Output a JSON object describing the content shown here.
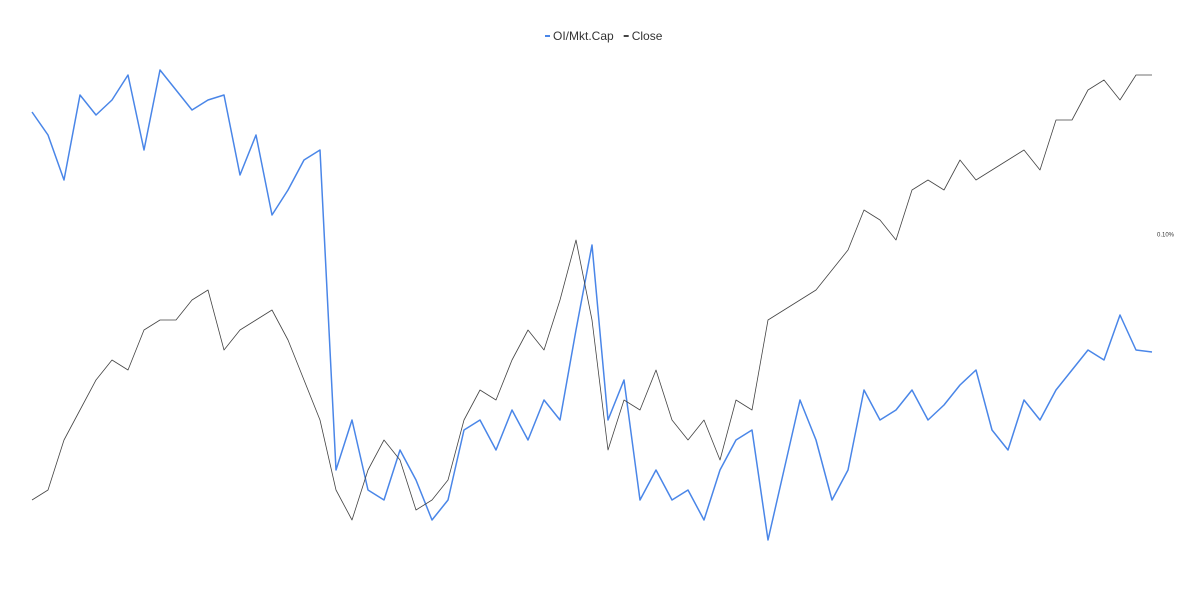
{
  "chart_data": {
    "type": "line",
    "categories": [
      null,
      null,
      null,
      null,
      null,
      null,
      null,
      null,
      null,
      null,
      null,
      null,
      null,
      null,
      null,
      null,
      null,
      null,
      null,
      null,
      null,
      null,
      null,
      null,
      null,
      null,
      null,
      null,
      null,
      null,
      null,
      null,
      null,
      null,
      null,
      null,
      null,
      null,
      null,
      null,
      null,
      null,
      null,
      null,
      null,
      null,
      null,
      null,
      null,
      null,
      null,
      null,
      null,
      null,
      null,
      null,
      null,
      null,
      null,
      null,
      null,
      null,
      null,
      null,
      null,
      null,
      null,
      null,
      null,
      null,
      null
    ],
    "series": [
      {
        "name": "OI/Mkt.Cap",
        "color": "#4a86e8",
        "axis": "y2",
        "values": [
          0.1246,
          0.12,
          0.111,
          0.128,
          0.124,
          0.127,
          0.132,
          0.117,
          0.133,
          0.129,
          0.125,
          0.127,
          0.128,
          0.112,
          0.12,
          0.104,
          0.109,
          0.115,
          0.117,
          0.053,
          0.063,
          0.049,
          0.047,
          0.057,
          0.051,
          0.043,
          0.047,
          0.061,
          0.063,
          0.057,
          0.065,
          0.059,
          0.067,
          0.063,
          0.081,
          0.098,
          0.063,
          0.071,
          0.047,
          0.053,
          0.047,
          0.049,
          0.043,
          0.053,
          0.059,
          0.061,
          0.039,
          0.053,
          0.067,
          0.059,
          0.047,
          0.053,
          0.069,
          0.063,
          0.065,
          0.069,
          0.063,
          0.066,
          0.07,
          0.073,
          0.061,
          0.057,
          0.067,
          0.063,
          0.069,
          0.073,
          0.077,
          0.075,
          0.084,
          0.077,
          0.0766
        ]
      },
      {
        "name": "Close",
        "color": "#444444",
        "values": [
          12,
          14,
          24,
          30,
          36,
          40,
          38,
          46,
          48,
          48,
          52,
          54,
          42,
          46,
          48,
          50,
          44,
          36,
          28,
          14,
          8,
          18,
          24,
          20,
          10,
          12,
          16,
          28,
          34,
          32,
          40,
          46,
          42,
          52,
          64,
          48,
          22,
          32,
          30,
          38,
          28,
          24,
          28,
          20,
          32,
          30,
          48,
          50,
          52,
          54,
          58,
          62,
          70,
          68,
          64,
          74,
          76,
          74,
          80,
          76,
          78,
          80,
          82,
          78,
          88,
          88,
          94,
          96,
          92,
          97,
          97
        ]
      }
    ],
    "ylim": [
      0,
      100
    ],
    "y2lim": [
      0.035,
      0.135
    ],
    "y2ticks": [
      {
        "value": 0.1,
        "label": "0.10%"
      }
    ]
  }
}
